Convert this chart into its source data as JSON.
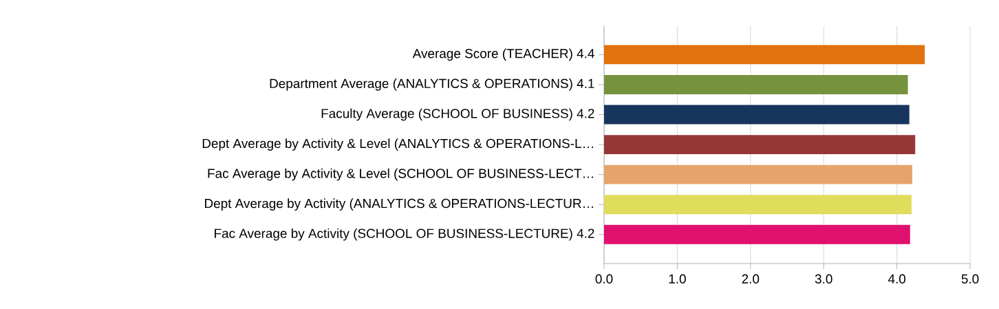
{
  "chart_data": {
    "type": "bar",
    "orientation": "horizontal",
    "categories": [
      "Average Score (TEACHER) 4.4",
      "Department Average (ANALYTICS & OPERATIONS) 4.1",
      "Faculty Average (SCHOOL OF BUSINESS) 4.2",
      "Dept Average by Activity & Level (ANALYTICS & OPERATIONS-L…",
      "Fac Average by Activity & Level (SCHOOL OF BUSINESS-LECT…",
      "Dept Average by Activity (ANALYTICS & OPERATIONS-LECTUR…",
      "Fac Average by Activity (SCHOOL OF BUSINESS-LECTURE) 4.2"
    ],
    "values": [
      4.38,
      4.15,
      4.17,
      4.25,
      4.21,
      4.2,
      4.18
    ],
    "colors": [
      "#e2720e",
      "#76923c",
      "#17365d",
      "#953735",
      "#e6a46b",
      "#e0dc5c",
      "#e0106e"
    ],
    "xlim": [
      0,
      5
    ],
    "xticks": [
      {
        "value": 0,
        "label": "0.0"
      },
      {
        "value": 1,
        "label": "1.0"
      },
      {
        "value": 2,
        "label": "2.0"
      },
      {
        "value": 3,
        "label": "3.0"
      },
      {
        "value": 4,
        "label": "4.0"
      },
      {
        "value": 5,
        "label": "5.0"
      }
    ],
    "grid": "x"
  }
}
